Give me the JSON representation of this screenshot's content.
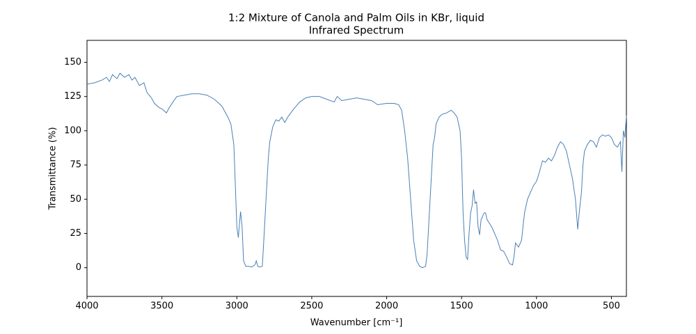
{
  "chart_data": {
    "type": "line",
    "title": "1:2 Mixture of Canola and Palm Oils in KBr, liquid",
    "subtitle": "Infrared Spectrum",
    "x_label": "Wavenumber [cm⁻¹]",
    "y_label": "Transmittance (%)",
    "color": "#4a7fb5",
    "xlim": [
      4000,
      400
    ],
    "ylim": [
      -21,
      166
    ],
    "xticks": [
      4000,
      3500,
      3000,
      2500,
      2000,
      1500,
      1000,
      500
    ],
    "yticks": [
      0,
      25,
      50,
      75,
      100,
      125,
      150
    ],
    "x": [
      4000,
      3950,
      3900,
      3870,
      3850,
      3830,
      3800,
      3780,
      3750,
      3720,
      3700,
      3680,
      3650,
      3620,
      3600,
      3570,
      3550,
      3520,
      3500,
      3470,
      3450,
      3420,
      3400,
      3350,
      3300,
      3250,
      3200,
      3150,
      3100,
      3060,
      3040,
      3020,
      3010,
      3000,
      2990,
      2980,
      2975,
      2965,
      2955,
      2940,
      2920,
      2900,
      2880,
      2870,
      2860,
      2850,
      2830,
      2820,
      2800,
      2790,
      2780,
      2760,
      2740,
      2720,
      2700,
      2680,
      2660,
      2620,
      2580,
      2540,
      2500,
      2450,
      2400,
      2350,
      2330,
      2300,
      2250,
      2200,
      2150,
      2100,
      2060,
      2000,
      1950,
      1920,
      1900,
      1880,
      1860,
      1840,
      1820,
      1800,
      1780,
      1760,
      1740,
      1730,
      1720,
      1700,
      1690,
      1680,
      1670,
      1650,
      1630,
      1600,
      1570,
      1550,
      1530,
      1510,
      1500,
      1490,
      1480,
      1470,
      1460,
      1450,
      1440,
      1430,
      1420,
      1410,
      1400,
      1390,
      1380,
      1370,
      1350,
      1340,
      1330,
      1300,
      1280,
      1260,
      1240,
      1220,
      1200,
      1180,
      1160,
      1150,
      1140,
      1120,
      1100,
      1080,
      1060,
      1040,
      1020,
      1000,
      980,
      960,
      940,
      920,
      900,
      880,
      860,
      840,
      820,
      800,
      780,
      760,
      740,
      725,
      715,
      700,
      690,
      680,
      660,
      640,
      620,
      600,
      580,
      560,
      540,
      520,
      500,
      480,
      460,
      440,
      430,
      420,
      410,
      400
    ],
    "values": [
      134,
      135,
      137,
      139,
      136,
      141,
      138,
      142,
      139,
      141,
      137,
      139,
      133,
      135,
      128,
      124,
      120,
      117,
      116,
      113,
      117,
      122,
      125,
      126,
      127,
      127,
      126,
      123,
      118,
      110,
      105,
      90,
      60,
      30,
      22,
      35,
      41,
      30,
      5,
      1,
      1,
      0.5,
      2,
      5,
      1,
      0.5,
      1,
      20,
      60,
      80,
      92,
      103,
      108,
      107,
      110,
      106,
      110,
      116,
      121,
      124,
      125,
      125,
      123,
      121,
      125,
      122,
      123,
      124,
      123,
      122,
      119,
      120,
      120,
      119,
      115,
      100,
      80,
      50,
      20,
      5,
      1,
      0,
      1,
      10,
      30,
      70,
      90,
      95,
      105,
      110,
      112,
      113,
      115,
      113,
      110,
      100,
      80,
      40,
      20,
      8,
      6,
      25,
      40,
      45,
      57,
      47,
      48,
      30,
      24,
      35,
      40,
      40,
      35,
      30,
      25,
      20,
      13,
      12,
      8,
      3,
      2,
      8,
      18,
      15,
      20,
      40,
      50,
      55,
      60,
      63,
      70,
      78,
      77,
      80,
      78,
      82,
      88,
      92,
      90,
      85,
      75,
      65,
      50,
      28,
      40,
      55,
      75,
      85,
      90,
      93,
      92,
      88,
      95,
      97,
      96,
      97,
      95,
      90,
      88,
      92,
      70,
      100,
      95,
      111
    ]
  }
}
